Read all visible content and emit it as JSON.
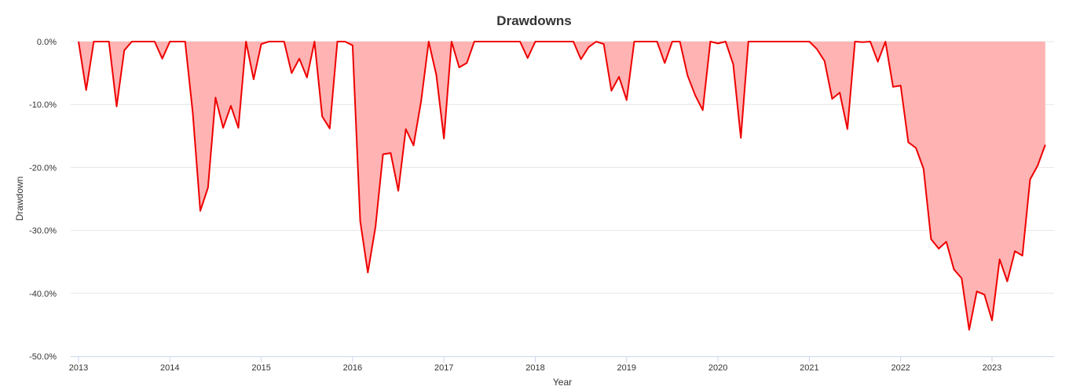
{
  "chart_data": {
    "type": "area",
    "title": "Drawdowns",
    "xlabel": "Year",
    "ylabel": "Drawdown",
    "xlim": [
      2013.0,
      2023.65
    ],
    "ylim": [
      -50,
      0
    ],
    "y_ticks": [
      0,
      -10,
      -20,
      -30,
      -40,
      -50
    ],
    "y_tick_labels": [
      "0.0%",
      "-10.0%",
      "-20.0%",
      "-30.0%",
      "-40.0%",
      "-50.0%"
    ],
    "x_ticks": [
      2013,
      2014,
      2015,
      2016,
      2017,
      2018,
      2019,
      2020,
      2021,
      2022,
      2023
    ],
    "x_tick_labels": [
      "2013",
      "2014",
      "2015",
      "2016",
      "2017",
      "2018",
      "2019",
      "2020",
      "2021",
      "2022",
      "2023"
    ],
    "grid": true,
    "legend": "none",
    "colors": {
      "line": "#ee0000",
      "fill": "#ffb3b3"
    },
    "series": [
      {
        "x": [
          2013.0,
          2013.083,
          2013.167,
          2013.25,
          2013.333,
          2013.417,
          2013.5,
          2013.583,
          2013.667,
          2013.75,
          2013.833,
          2013.917,
          2014.0,
          2014.083,
          2014.167,
          2014.25,
          2014.333,
          2014.417,
          2014.5,
          2014.583,
          2014.667,
          2014.75,
          2014.833,
          2014.917,
          2015.0,
          2015.083,
          2015.167,
          2015.25,
          2015.333,
          2015.417,
          2015.5,
          2015.583,
          2015.667,
          2015.75,
          2015.833,
          2015.917,
          2016.0,
          2016.083,
          2016.167,
          2016.25,
          2016.333,
          2016.417,
          2016.5,
          2016.583,
          2016.667,
          2016.75,
          2016.833,
          2016.917,
          2017.0,
          2017.083,
          2017.167,
          2017.25,
          2017.333,
          2017.417,
          2017.5,
          2017.583,
          2017.667,
          2017.75,
          2017.833,
          2017.917,
          2018.0,
          2018.083,
          2018.167,
          2018.25,
          2018.333,
          2018.417,
          2018.5,
          2018.583,
          2018.667,
          2018.75,
          2018.833,
          2018.917,
          2019.0,
          2019.083,
          2019.167,
          2019.25,
          2019.333,
          2019.417,
          2019.5,
          2019.583,
          2019.667,
          2019.75,
          2019.833,
          2019.917,
          2020.0,
          2020.083,
          2020.167,
          2020.25,
          2020.333,
          2020.417,
          2020.5,
          2020.583,
          2020.667,
          2020.75,
          2020.833,
          2020.917,
          2021.0,
          2021.083,
          2021.167,
          2021.25,
          2021.333,
          2021.417,
          2021.5,
          2021.583,
          2021.667,
          2021.75,
          2021.833,
          2021.917,
          2022.0,
          2022.083,
          2022.167,
          2022.25,
          2022.333,
          2022.417,
          2022.5,
          2022.583,
          2022.667,
          2022.75,
          2022.833,
          2022.917,
          2023.0,
          2023.083,
          2023.167,
          2023.25,
          2023.333,
          2023.417,
          2023.5,
          2023.583
        ],
        "values": [
          0.0,
          -7.7,
          0.0,
          0.0,
          0.0,
          -10.3,
          -1.4,
          0.0,
          0.0,
          0.0,
          0.0,
          -2.7,
          0.0,
          0.0,
          0.0,
          -11.3,
          -26.9,
          -23.2,
          -8.9,
          -13.7,
          -10.2,
          -13.7,
          0.0,
          -6.0,
          -0.4,
          0.0,
          0.0,
          0.0,
          -5.0,
          -2.7,
          -5.7,
          0.0,
          -11.9,
          -13.8,
          0.0,
          0.0,
          -0.6,
          -28.5,
          -36.7,
          -29.5,
          -17.9,
          -17.7,
          -23.7,
          -13.9,
          -16.5,
          -9.5,
          0.0,
          -5.3,
          -15.4,
          0.0,
          -4.1,
          -3.4,
          0.0,
          0.0,
          0.0,
          0.0,
          0.0,
          0.0,
          0.0,
          -2.6,
          0.0,
          0.0,
          0.0,
          0.0,
          0.0,
          0.0,
          -2.8,
          -0.9,
          0.0,
          -0.4,
          -7.8,
          -5.6,
          -9.3,
          0.0,
          0.0,
          0.0,
          0.0,
          -3.4,
          0.0,
          0.0,
          -5.4,
          -8.5,
          -10.9,
          0.0,
          -0.3,
          0.0,
          -3.6,
          -15.3,
          0.0,
          0.0,
          0.0,
          0.0,
          0.0,
          0.0,
          0.0,
          0.0,
          0.0,
          -1.2,
          -3.1,
          -9.1,
          -8.1,
          -13.9,
          0.0,
          -0.1,
          0.0,
          -3.2,
          0.0,
          -7.2,
          -7.0,
          -16.0,
          -16.9,
          -20.2,
          -31.4,
          -32.9,
          -31.8,
          -36.2,
          -37.6,
          -45.8,
          -39.7,
          -40.2,
          -44.3,
          -34.6,
          -38.1,
          -33.3,
          -34.0,
          -21.9,
          -19.7,
          -16.4
        ]
      }
    ]
  }
}
